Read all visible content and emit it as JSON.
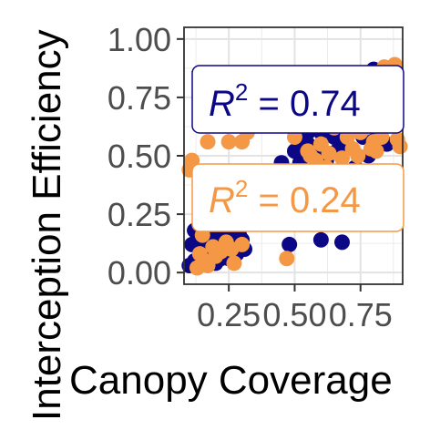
{
  "chart_data": {
    "type": "scatter",
    "title": "",
    "xlabel": "Canopy Coverage",
    "ylabel": "Interception Efficiency",
    "xlim": [
      0.08,
      0.91
    ],
    "ylim": [
      -0.05,
      1.05
    ],
    "x_ticks": [
      0.25,
      0.5,
      0.75
    ],
    "x_tick_labels": [
      "0.25",
      "0.50",
      "0.75"
    ],
    "y_ticks": [
      0.0,
      0.25,
      0.5,
      0.75,
      1.0
    ],
    "y_tick_labels": [
      "0.00",
      "0.25",
      "0.50",
      "0.75",
      "1.00"
    ],
    "grid": true,
    "legend": "none",
    "series": [
      {
        "color": "#0c0785",
        "points": [
          [
            0.1,
            0.03
          ],
          [
            0.12,
            0.05
          ],
          [
            0.14,
            0.1
          ],
          [
            0.16,
            0.12
          ],
          [
            0.18,
            0.09
          ],
          [
            0.2,
            0.15
          ],
          [
            0.22,
            0.06
          ],
          [
            0.24,
            0.17
          ],
          [
            0.26,
            0.12
          ],
          [
            0.28,
            0.08
          ],
          [
            0.3,
            0.14
          ],
          [
            0.12,
            0.18
          ],
          [
            0.15,
            0.16
          ],
          [
            0.2,
            0.04
          ],
          [
            0.25,
            0.06
          ],
          [
            0.29,
            0.16
          ],
          [
            0.31,
            0.1
          ],
          [
            0.18,
            0.19
          ],
          [
            0.11,
            0.12
          ],
          [
            0.23,
            0.1
          ],
          [
            0.45,
            0.47
          ],
          [
            0.5,
            0.52
          ],
          [
            0.52,
            0.55
          ],
          [
            0.55,
            0.6
          ],
          [
            0.58,
            0.63
          ],
          [
            0.6,
            0.66
          ],
          [
            0.62,
            0.68
          ],
          [
            0.64,
            0.7
          ],
          [
            0.66,
            0.75
          ],
          [
            0.68,
            0.72
          ],
          [
            0.7,
            0.78
          ],
          [
            0.72,
            0.8
          ],
          [
            0.74,
            0.76
          ],
          [
            0.76,
            0.82
          ],
          [
            0.78,
            0.84
          ],
          [
            0.8,
            0.87
          ],
          [
            0.82,
            0.86
          ],
          [
            0.84,
            0.78
          ],
          [
            0.86,
            0.74
          ],
          [
            0.88,
            0.7
          ],
          [
            0.6,
            0.6
          ],
          [
            0.65,
            0.58
          ],
          [
            0.7,
            0.62
          ],
          [
            0.75,
            0.66
          ],
          [
            0.8,
            0.6
          ],
          [
            0.55,
            0.55
          ],
          [
            0.58,
            0.5
          ],
          [
            0.62,
            0.48
          ],
          [
            0.68,
            0.55
          ],
          [
            0.72,
            0.64
          ],
          [
            0.76,
            0.58
          ],
          [
            0.82,
            0.68
          ],
          [
            0.86,
            0.8
          ],
          [
            0.88,
            0.76
          ],
          [
            0.85,
            0.55
          ],
          [
            0.78,
            0.5
          ],
          [
            0.73,
            0.45
          ],
          [
            0.66,
            0.52
          ],
          [
            0.58,
            0.45
          ],
          [
            0.52,
            0.47
          ],
          [
            0.48,
            0.12
          ],
          [
            0.6,
            0.14
          ],
          [
            0.68,
            0.13
          ],
          [
            0.79,
            0.62
          ],
          [
            0.83,
            0.72
          ]
        ]
      },
      {
        "color": "#f59845",
        "points": [
          [
            0.1,
            0.44
          ],
          [
            0.11,
            0.48
          ],
          [
            0.14,
            0.08
          ],
          [
            0.16,
            0.05
          ],
          [
            0.17,
            0.03
          ],
          [
            0.19,
            0.11
          ],
          [
            0.22,
            0.09
          ],
          [
            0.24,
            0.13
          ],
          [
            0.26,
            0.1
          ],
          [
            0.27,
            0.04
          ],
          [
            0.3,
            0.12
          ],
          [
            0.15,
            0.16
          ],
          [
            0.2,
            0.07
          ],
          [
            0.13,
            0.02
          ],
          [
            0.25,
            0.56
          ],
          [
            0.3,
            0.56
          ],
          [
            0.17,
            0.56
          ],
          [
            0.32,
            0.6
          ],
          [
            0.47,
            0.06
          ],
          [
            0.5,
            0.58
          ],
          [
            0.55,
            0.52
          ],
          [
            0.58,
            0.48
          ],
          [
            0.6,
            0.55
          ],
          [
            0.63,
            0.51
          ],
          [
            0.65,
            0.62
          ],
          [
            0.67,
            0.65
          ],
          [
            0.7,
            0.58
          ],
          [
            0.72,
            0.53
          ],
          [
            0.75,
            0.6
          ],
          [
            0.77,
            0.62
          ],
          [
            0.8,
            0.56
          ],
          [
            0.83,
            0.58
          ],
          [
            0.85,
            0.66
          ],
          [
            0.87,
            0.63
          ],
          [
            0.89,
            0.57
          ],
          [
            0.84,
            0.88
          ],
          [
            0.88,
            0.89
          ],
          [
            0.86,
            0.84
          ],
          [
            0.62,
            0.45
          ],
          [
            0.56,
            0.5
          ],
          [
            0.74,
            0.5
          ],
          [
            0.79,
            0.53
          ],
          [
            0.68,
            0.49
          ],
          [
            0.9,
            0.54
          ],
          [
            0.81,
            0.52
          ]
        ]
      }
    ],
    "annotations": [
      {
        "label_prefix": "R",
        "label_sup": "2",
        "label_suffix": " = 0.74",
        "color": "#0c0785"
      },
      {
        "label_prefix": "R",
        "label_sup": "2",
        "label_suffix": " = 0.24",
        "color": "#f59845"
      }
    ]
  }
}
